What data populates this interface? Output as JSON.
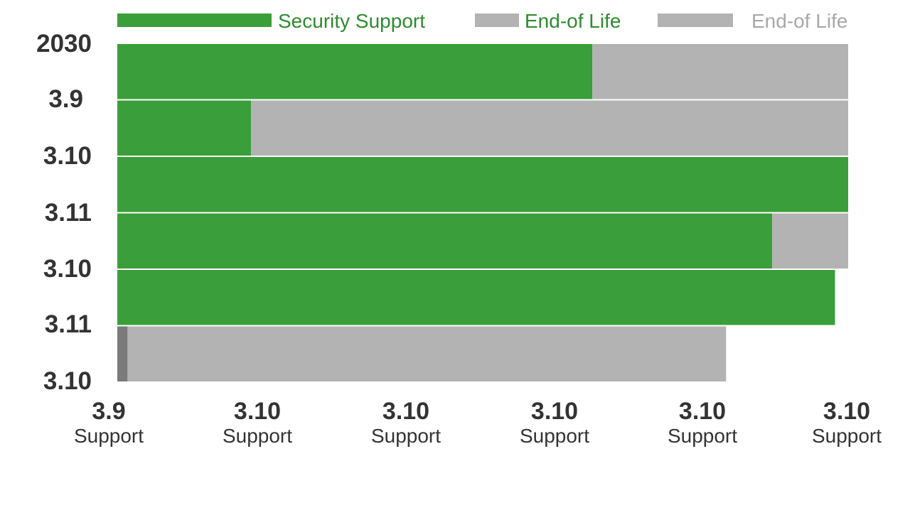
{
  "colors": {
    "security": "#3a9e3a",
    "eol": "#b3b3b3",
    "eol_dark": "#7a7a7a",
    "legend_green_text": "#2e8b2e",
    "legend_gray_text": "#a8a8a8",
    "tick_text": "#333333"
  },
  "legend": [
    {
      "label": "Security Support",
      "color": "#3a9e3a",
      "text_color": "#2e8b2e"
    },
    {
      "label": "End-of Life",
      "color": "#b3b3b3",
      "text_color": "#2e8b2e"
    },
    {
      "label": "End-of Life",
      "color": "#b3b3b3",
      "text_color": "#a8a8a8"
    }
  ],
  "chart_data": {
    "type": "bar",
    "orientation": "horizontal",
    "stacked": true,
    "title": "",
    "xlabel": "",
    "ylabel": "",
    "xlim": [
      0,
      100
    ],
    "categories": [
      "2030",
      "3.9",
      "3.10",
      "3.11",
      "3.10",
      "3.11",
      "3.10"
    ],
    "series": [
      {
        "name": "Security Support",
        "color": "#3a9e3a",
        "values": [
          65,
          18.3,
          100,
          89.6,
          98.2,
          0,
          null
        ]
      },
      {
        "name": "End-of Life",
        "color": "#b3b3b3",
        "values": [
          35,
          81.7,
          0,
          10.4,
          0,
          0,
          null
        ]
      },
      {
        "name": "",
        "color": "#7a7a7a",
        "values": [
          0,
          0,
          0,
          0,
          0,
          1.4,
          null
        ]
      },
      {
        "name": "",
        "color": "#b3b3b3",
        "values": [
          0,
          0,
          0,
          0,
          0,
          81.9,
          null
        ]
      }
    ],
    "x_ticks": [
      {
        "value": 0,
        "line1": "3.9",
        "line2": "Support"
      },
      {
        "value": 20,
        "line1": "3.10",
        "line2": "Support"
      },
      {
        "value": 40,
        "line1": "3.10",
        "line2": "Support"
      },
      {
        "value": 60,
        "line1": "3.10",
        "line2": "Support"
      },
      {
        "value": 80,
        "line1": "3.10",
        "line2": "Support"
      },
      {
        "value": 100,
        "line1": "3.10",
        "line2": "Support"
      }
    ],
    "grid": false,
    "legend_position": "top"
  }
}
